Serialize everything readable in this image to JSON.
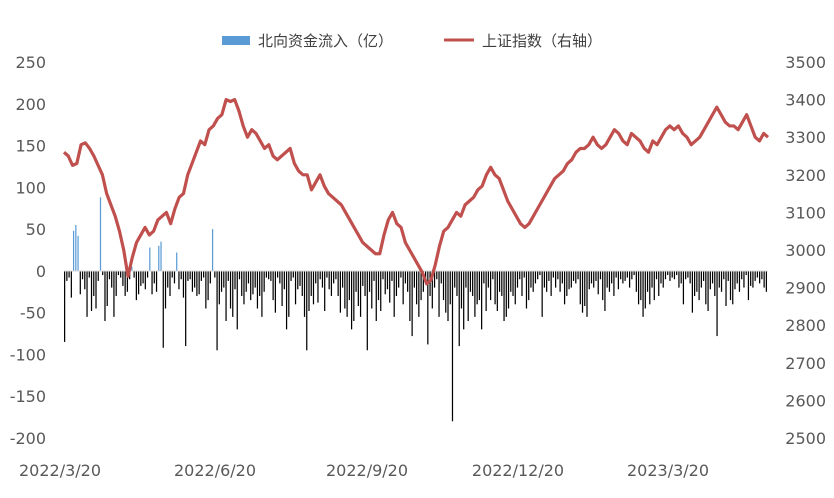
{
  "chart_data": {
    "type": "bar+line",
    "legend": {
      "placement": "top-center",
      "bar_label": "北向资金流入（亿）",
      "line_label": "上证指数（右轴）"
    },
    "x_tick_labels": [
      "2022/3/20",
      "2022/6/20",
      "2022/9/20",
      "2022/12/20",
      "2023/3/20"
    ],
    "y_left": {
      "ticks": [
        "250",
        "200",
        "150",
        "100",
        "50",
        "0",
        "-50",
        "-100",
        "-150",
        "-200"
      ],
      "ylim": [
        -200,
        250
      ]
    },
    "y_right": {
      "ticks": [
        "3500",
        "3400",
        "3300",
        "3200",
        "3100",
        "3000",
        "2900",
        "2800",
        "2700",
        "2600",
        "2500"
      ],
      "ylim": [
        2500,
        3500
      ]
    },
    "colors": {
      "inflow": "#5B9BD5",
      "outflow": "#000000",
      "index_line": "#C0504D"
    },
    "bar_series": {
      "name": "北向资金流入（亿）",
      "values": [
        -85,
        -12,
        -8,
        -32,
        48,
        55,
        42,
        -28,
        -10,
        -22,
        -55,
        -8,
        -48,
        -30,
        -45,
        -12,
        88,
        -5,
        -60,
        -42,
        -10,
        -20,
        -55,
        -30,
        -5,
        -8,
        -18,
        -30,
        -25,
        -10,
        5,
        -8,
        -35,
        -28,
        -18,
        -15,
        -22,
        -8,
        28,
        -28,
        -15,
        -25,
        30,
        35,
        -92,
        -45,
        -20,
        -30,
        -8,
        -15,
        22,
        -22,
        -10,
        -32,
        -90,
        -12,
        -10,
        -25,
        -20,
        -30,
        -28,
        -12,
        -8,
        -45,
        -35,
        -15,
        50,
        -8,
        -95,
        -40,
        -25,
        -20,
        -60,
        -12,
        -45,
        -55,
        -22,
        -70,
        -10,
        -30,
        -40,
        -25,
        -15,
        -35,
        -28,
        -20,
        -45,
        -30,
        -55,
        -25,
        -8,
        -10,
        -12,
        -35,
        -50,
        -8,
        -15,
        -42,
        -22,
        -70,
        -55,
        -12,
        -8,
        -40,
        -22,
        -18,
        -30,
        -55,
        -95,
        -48,
        -30,
        -40,
        -15,
        -38,
        -10,
        -20,
        -48,
        -8,
        -22,
        -30,
        -15,
        -10,
        -30,
        -50,
        -20,
        -45,
        -55,
        -35,
        -70,
        -60,
        -25,
        -42,
        -55,
        -18,
        -30,
        -95,
        -25,
        -45,
        -12,
        -60,
        -35,
        -48,
        -10,
        -28,
        -22,
        -38,
        -12,
        -55,
        -30,
        -20,
        -8,
        -40,
        -15,
        -25,
        -60,
        -78,
        -20,
        -40,
        -55,
        -35,
        -25,
        -10,
        -88,
        -30,
        -45,
        -20,
        -10,
        -55,
        -15,
        -35,
        -50,
        -60,
        -40,
        -180,
        -20,
        -30,
        -90,
        -45,
        -70,
        -20,
        -60,
        -25,
        -30,
        -55,
        -40,
        -35,
        -70,
        -15,
        -48,
        -20,
        -35,
        -10,
        -40,
        -48,
        -25,
        -30,
        -60,
        -55,
        -45,
        -25,
        -30,
        -40,
        -20,
        -10,
        -30,
        -8,
        -45,
        -35,
        -20,
        -25,
        -15,
        -10,
        -5,
        -55,
        -20,
        -25,
        -12,
        -30,
        -8,
        -20,
        -10,
        -25,
        -15,
        -40,
        -30,
        -22,
        -20,
        -12,
        -15,
        -10,
        -40,
        -50,
        -42,
        -55,
        -22,
        -15,
        -20,
        -12,
        -28,
        -10,
        -35,
        -48,
        -20,
        -25,
        -15,
        -30,
        -8,
        -22,
        -10,
        -15,
        -12,
        -8,
        -20,
        -10,
        -5,
        -25,
        -40,
        -35,
        -55,
        -45,
        -25,
        -40,
        -20,
        -35,
        -10,
        -30,
        -15,
        -20,
        -10,
        -5,
        -12,
        -8,
        -10,
        -5,
        -20,
        -15,
        -40,
        -10,
        -8,
        -15,
        -50,
        -30,
        -25,
        -35,
        -20,
        -12,
        -40,
        -48,
        -22,
        -15,
        -30,
        -78,
        -20,
        -25,
        -10,
        -42,
        -12,
        -35,
        -40,
        -22,
        -15,
        -25,
        -10,
        -20,
        -5,
        -35,
        -18,
        -20,
        -12,
        -8,
        -15,
        -10,
        -20,
        -25
      ]
    },
    "line_series": {
      "name": "上证指数（右轴）",
      "values": [
        3260,
        3250,
        3225,
        3230,
        3280,
        3285,
        3270,
        3250,
        3225,
        3200,
        3150,
        3120,
        3090,
        3050,
        3000,
        2930,
        2980,
        3020,
        3040,
        3060,
        3040,
        3050,
        3080,
        3090,
        3100,
        3070,
        3110,
        3140,
        3150,
        3200,
        3230,
        3260,
        3290,
        3280,
        3320,
        3330,
        3350,
        3360,
        3400,
        3395,
        3400,
        3370,
        3330,
        3300,
        3320,
        3310,
        3290,
        3270,
        3280,
        3250,
        3240,
        3250,
        3260,
        3270,
        3230,
        3210,
        3200,
        3200,
        3160,
        3180,
        3200,
        3170,
        3150,
        3140,
        3130,
        3120,
        3100,
        3080,
        3060,
        3040,
        3020,
        3010,
        3000,
        2990,
        2990,
        3040,
        3080,
        3100,
        3070,
        3060,
        3020,
        3000,
        2980,
        2960,
        2940,
        2910,
        2920,
        2960,
        3010,
        3050,
        3060,
        3080,
        3100,
        3090,
        3120,
        3130,
        3140,
        3160,
        3170,
        3200,
        3220,
        3200,
        3190,
        3160,
        3130,
        3110,
        3090,
        3070,
        3060,
        3070,
        3090,
        3110,
        3130,
        3150,
        3170,
        3190,
        3200,
        3210,
        3230,
        3240,
        3260,
        3270,
        3270,
        3280,
        3300,
        3280,
        3270,
        3280,
        3300,
        3320,
        3310,
        3290,
        3280,
        3310,
        3300,
        3290,
        3270,
        3260,
        3290,
        3280,
        3300,
        3320,
        3330,
        3320,
        3330,
        3310,
        3300,
        3280,
        3290,
        3300,
        3320,
        3340,
        3360,
        3380,
        3360,
        3340,
        3330,
        3330,
        3320,
        3340,
        3360,
        3330,
        3300,
        3290,
        3310,
        3300
      ]
    }
  }
}
